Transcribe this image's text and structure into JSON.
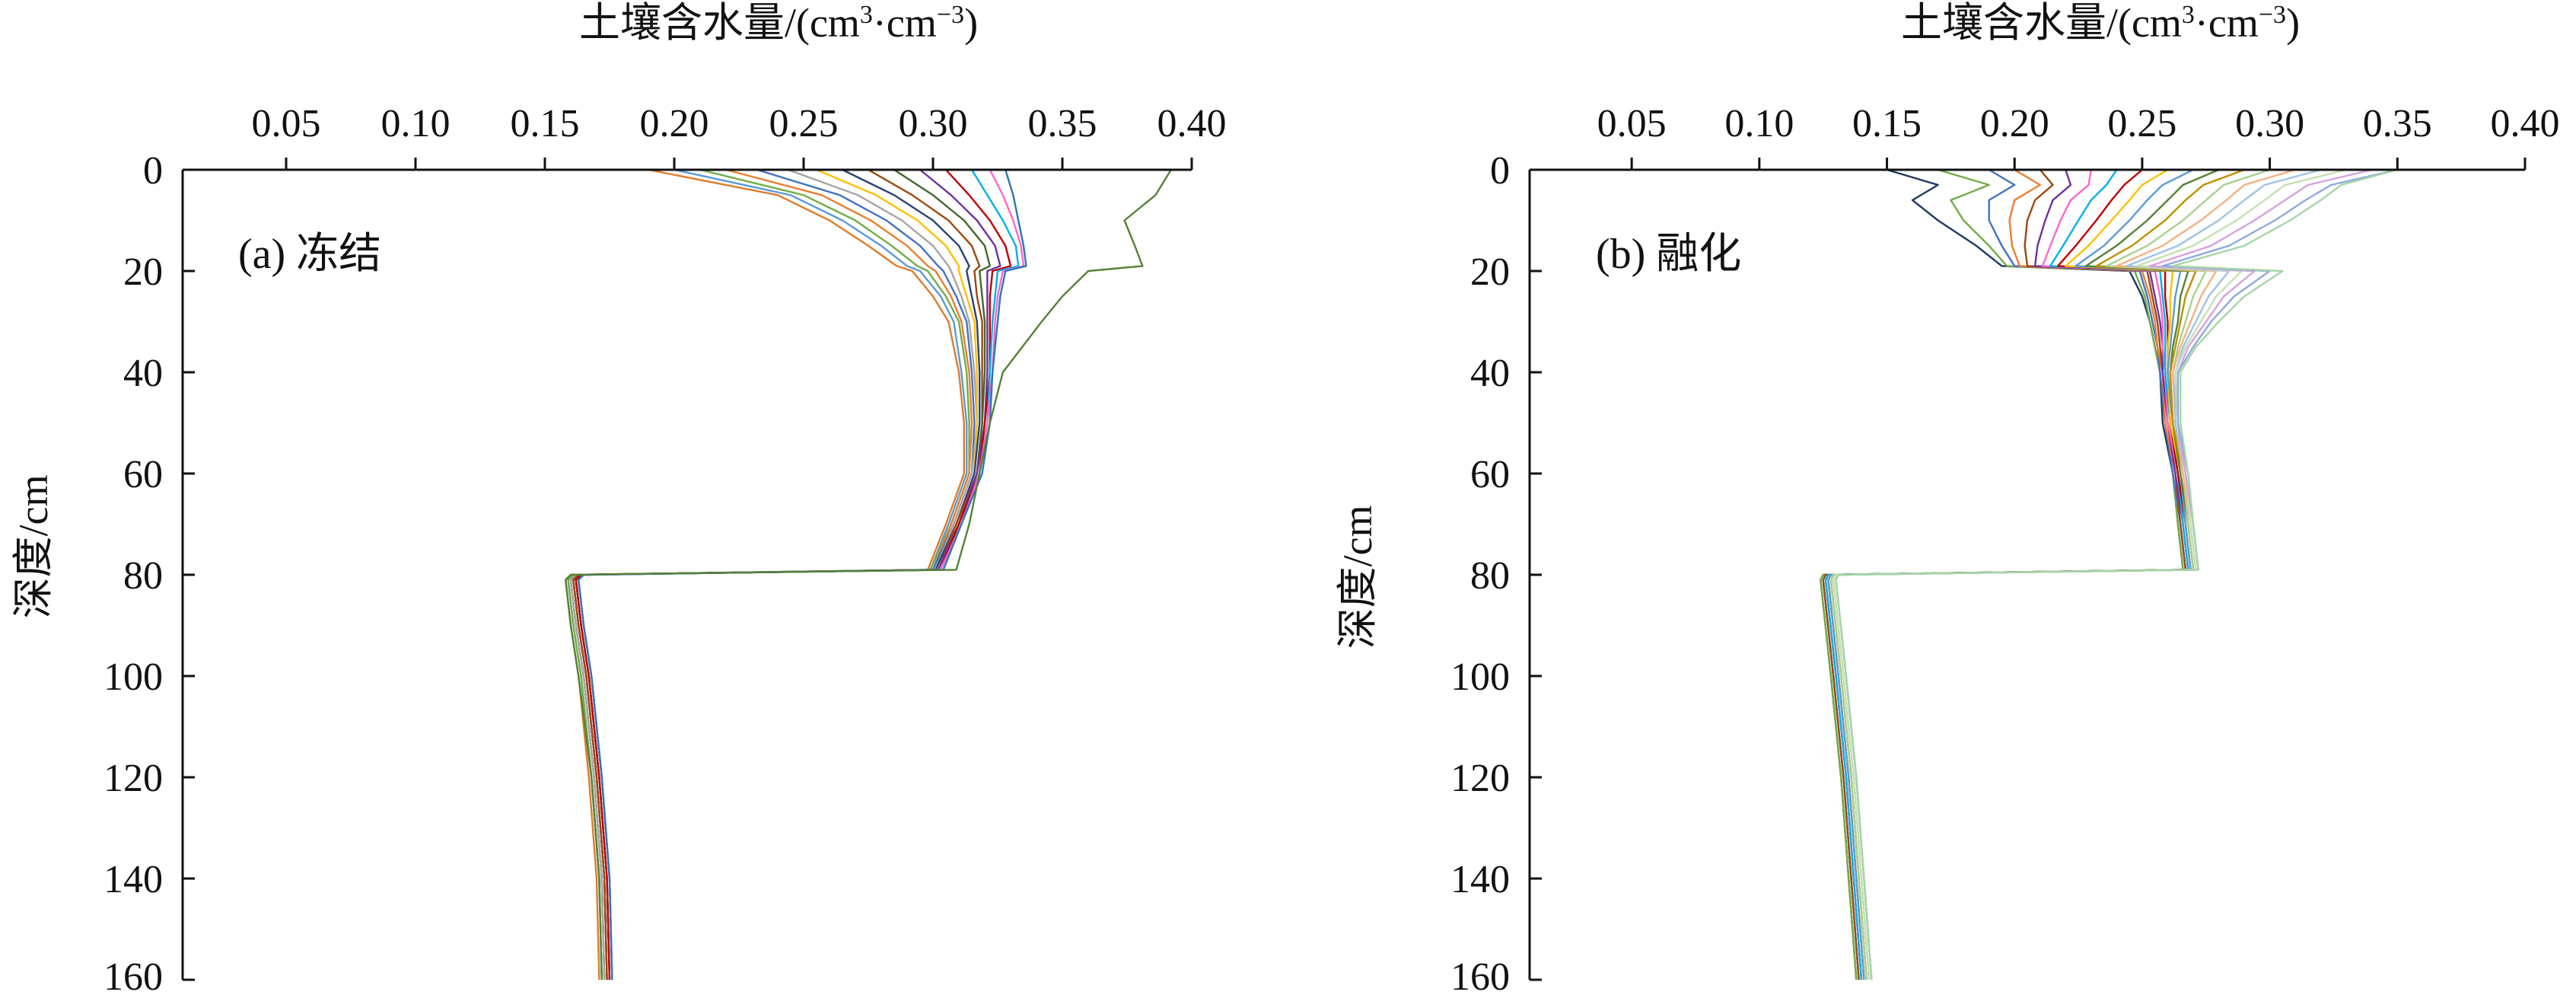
{
  "figure": {
    "panels": [
      {
        "id": "a",
        "panel_label": "(a) 冻结",
        "x_title_main": "土壤含水量/(cm",
        "x_title_sup1": "3",
        "x_title_mid": "·cm",
        "x_title_sup2": "−3",
        "x_title_end": ")",
        "y_title": "深度/cm",
        "x_ticks": [
          "0.05",
          "0.10",
          "0.15",
          "0.20",
          "0.25",
          "0.30",
          "0.35",
          "0.40"
        ],
        "y_ticks": [
          "0",
          "20",
          "40",
          "60",
          "80",
          "100",
          "120",
          "140",
          "160"
        ]
      },
      {
        "id": "b",
        "panel_label": "(b) 融化",
        "x_title_main": "土壤含水量/(cm",
        "x_title_sup1": "3",
        "x_title_mid": "·cm",
        "x_title_sup2": "−3",
        "x_title_end": ")",
        "y_title": "深度/cm",
        "x_ticks": [
          "0.05",
          "0.10",
          "0.15",
          "0.20",
          "0.25",
          "0.30",
          "0.35",
          "0.40"
        ],
        "y_ticks": [
          "0",
          "20",
          "40",
          "60",
          "80",
          "100",
          "120",
          "140",
          "160"
        ]
      }
    ]
  },
  "chart_data": [
    {
      "type": "line",
      "panel": "a",
      "title": "(a) 冻结",
      "xlabel": "土壤含水量/(cm³·cm⁻³)",
      "ylabel": "深度/cm",
      "xlim": [
        0.01,
        0.4
      ],
      "ylim": [
        0,
        160
      ],
      "y_inverted": true,
      "x_axis_position": "top",
      "grid": false,
      "legend": "none",
      "depth": [
        0,
        5,
        10,
        15,
        19,
        20,
        25,
        30,
        40,
        50,
        60,
        70,
        79,
        80,
        81,
        90,
        100,
        120,
        140,
        160
      ],
      "colors": [
        "#e07b2a",
        "#5b9bd5",
        "#70ad47",
        "#ed7d31",
        "#4472c4",
        "#a5a5a5",
        "#ffc000",
        "#264478",
        "#9e480e",
        "#43682b",
        "#7030a0",
        "#c00000",
        "#00b0f0",
        "#ff66cc",
        "#2e75b6",
        "#548235",
        "#bf9000",
        "#7f6000",
        "#1f3864",
        "#333333"
      ],
      "series": [
        {
          "values": [
            0.19,
            0.24,
            0.26,
            0.275,
            0.286,
            0.292,
            0.3,
            0.306,
            0.31,
            0.312,
            0.312,
            0.305,
            0.298,
            0.16,
            0.158,
            0.16,
            0.163,
            0.167,
            0.17,
            0.171
          ]
        },
        {
          "values": [
            0.2,
            0.245,
            0.265,
            0.28,
            0.29,
            0.295,
            0.303,
            0.308,
            0.311,
            0.313,
            0.313,
            0.306,
            0.299,
            0.161,
            0.159,
            0.161,
            0.164,
            0.168,
            0.171,
            0.172
          ]
        },
        {
          "values": [
            0.21,
            0.25,
            0.27,
            0.284,
            0.294,
            0.298,
            0.305,
            0.31,
            0.313,
            0.314,
            0.314,
            0.307,
            0.299,
            0.161,
            0.159,
            0.161,
            0.164,
            0.168,
            0.171,
            0.172
          ]
        },
        {
          "values": [
            0.22,
            0.257,
            0.276,
            0.29,
            0.298,
            0.301,
            0.307,
            0.311,
            0.314,
            0.315,
            0.314,
            0.307,
            0.3,
            0.162,
            0.16,
            0.162,
            0.165,
            0.169,
            0.172,
            0.173
          ]
        },
        {
          "values": [
            0.232,
            0.264,
            0.282,
            0.295,
            0.302,
            0.304,
            0.309,
            0.313,
            0.315,
            0.316,
            0.315,
            0.308,
            0.3,
            0.162,
            0.16,
            0.162,
            0.165,
            0.169,
            0.172,
            0.173
          ]
        },
        {
          "values": [
            0.244,
            0.271,
            0.288,
            0.3,
            0.306,
            0.307,
            0.311,
            0.314,
            0.316,
            0.317,
            0.315,
            0.308,
            0.301,
            0.162,
            0.16,
            0.162,
            0.165,
            0.169,
            0.172,
            0.173
          ]
        },
        {
          "values": [
            0.255,
            0.278,
            0.294,
            0.305,
            0.31,
            0.31,
            0.313,
            0.316,
            0.317,
            0.317,
            0.316,
            0.309,
            0.301,
            0.163,
            0.161,
            0.163,
            0.166,
            0.17,
            0.173,
            0.174
          ]
        },
        {
          "values": [
            0.265,
            0.285,
            0.3,
            0.31,
            0.314,
            0.313,
            0.315,
            0.317,
            0.318,
            0.318,
            0.316,
            0.309,
            0.301,
            0.163,
            0.161,
            0.163,
            0.166,
            0.17,
            0.173,
            0.174
          ]
        },
        {
          "values": [
            0.275,
            0.292,
            0.306,
            0.315,
            0.318,
            0.316,
            0.317,
            0.319,
            0.319,
            0.319,
            0.317,
            0.309,
            0.302,
            0.163,
            0.161,
            0.163,
            0.166,
            0.17,
            0.173,
            0.174
          ]
        },
        {
          "values": [
            0.285,
            0.3,
            0.312,
            0.32,
            0.322,
            0.318,
            0.319,
            0.32,
            0.32,
            0.319,
            0.317,
            0.31,
            0.302,
            0.164,
            0.162,
            0.164,
            0.167,
            0.171,
            0.174,
            0.175
          ]
        },
        {
          "values": [
            0.295,
            0.307,
            0.317,
            0.324,
            0.326,
            0.321,
            0.321,
            0.321,
            0.321,
            0.32,
            0.317,
            0.31,
            0.302,
            0.164,
            0.162,
            0.164,
            0.167,
            0.171,
            0.174,
            0.175
          ]
        },
        {
          "values": [
            0.305,
            0.314,
            0.322,
            0.328,
            0.33,
            0.323,
            0.322,
            0.322,
            0.322,
            0.32,
            0.318,
            0.31,
            0.303,
            0.164,
            0.162,
            0.164,
            0.167,
            0.171,
            0.174,
            0.175
          ]
        },
        {
          "values": [
            0.315,
            0.321,
            0.327,
            0.332,
            0.333,
            0.325,
            0.324,
            0.323,
            0.322,
            0.321,
            0.318,
            0.311,
            0.303,
            0.165,
            0.163,
            0.165,
            0.168,
            0.172,
            0.175,
            0.176
          ]
        },
        {
          "values": [
            0.322,
            0.327,
            0.331,
            0.334,
            0.335,
            0.327,
            0.325,
            0.324,
            0.323,
            0.321,
            0.318,
            0.311,
            0.303,
            0.165,
            0.163,
            0.165,
            0.168,
            0.172,
            0.175,
            0.176
          ]
        },
        {
          "values": [
            0.328,
            0.331,
            0.333,
            0.335,
            0.336,
            0.328,
            0.326,
            0.325,
            0.323,
            0.322,
            0.319,
            0.311,
            0.304,
            0.165,
            0.163,
            0.165,
            0.168,
            0.172,
            0.175,
            0.176
          ]
        },
        {
          "values": [
            0.392,
            0.386,
            0.374,
            0.378,
            0.381,
            0.36,
            0.35,
            0.342,
            0.327,
            0.322,
            0.318,
            0.314,
            0.309,
            0.16,
            0.158,
            0.16,
            0.163,
            0.168,
            0.171,
            0.172
          ]
        }
      ]
    },
    {
      "type": "line",
      "panel": "b",
      "title": "(b) 融化",
      "xlabel": "土壤含水量/(cm³·cm⁻³)",
      "ylabel": "深度/cm",
      "xlim": [
        0.01,
        0.4
      ],
      "ylim": [
        0,
        160
      ],
      "y_inverted": true,
      "x_axis_position": "top",
      "grid": false,
      "legend": "none",
      "depth": [
        0,
        3,
        6,
        10,
        15,
        19,
        20,
        25,
        30,
        35,
        40,
        50,
        60,
        70,
        79,
        80,
        81,
        100,
        120,
        140,
        160
      ],
      "colors": [
        "#1f3864",
        "#70ad47",
        "#4472c4",
        "#ed7d31",
        "#9e480e",
        "#7030a0",
        "#ff66cc",
        "#00b0f0",
        "#c00000",
        "#ffc000",
        "#5b9bd5",
        "#548235",
        "#bf9000",
        "#a9d18e",
        "#f4b183",
        "#9dc3e6",
        "#c5e0b4",
        "#d9a0e0",
        "#8faadc",
        "#a5d6a7"
      ],
      "series": [
        {
          "values": [
            0.15,
            0.17,
            0.16,
            0.17,
            0.185,
            0.195,
            0.245,
            0.25,
            0.253,
            0.255,
            0.257,
            0.258,
            0.262,
            0.264,
            0.266,
            0.125,
            0.124,
            0.128,
            0.132,
            0.135,
            0.138
          ]
        },
        {
          "values": [
            0.17,
            0.19,
            0.175,
            0.18,
            0.19,
            0.197,
            0.247,
            0.251,
            0.253,
            0.255,
            0.257,
            0.259,
            0.262,
            0.264,
            0.266,
            0.125,
            0.124,
            0.128,
            0.132,
            0.135,
            0.138
          ]
        },
        {
          "values": [
            0.19,
            0.2,
            0.19,
            0.19,
            0.195,
            0.2,
            0.249,
            0.252,
            0.254,
            0.256,
            0.257,
            0.259,
            0.262,
            0.265,
            0.267,
            0.126,
            0.125,
            0.129,
            0.133,
            0.136,
            0.139
          ]
        },
        {
          "values": [
            0.2,
            0.21,
            0.2,
            0.198,
            0.199,
            0.202,
            0.25,
            0.253,
            0.255,
            0.256,
            0.258,
            0.259,
            0.263,
            0.265,
            0.267,
            0.126,
            0.125,
            0.129,
            0.133,
            0.136,
            0.139
          ]
        },
        {
          "values": [
            0.21,
            0.215,
            0.208,
            0.205,
            0.204,
            0.205,
            0.252,
            0.254,
            0.256,
            0.257,
            0.258,
            0.26,
            0.263,
            0.265,
            0.267,
            0.126,
            0.125,
            0.129,
            0.133,
            0.136,
            0.139
          ]
        },
        {
          "values": [
            0.22,
            0.222,
            0.215,
            0.212,
            0.209,
            0.208,
            0.253,
            0.255,
            0.257,
            0.258,
            0.258,
            0.26,
            0.263,
            0.266,
            0.268,
            0.127,
            0.126,
            0.13,
            0.134,
            0.137,
            0.14
          ]
        },
        {
          "values": [
            0.23,
            0.229,
            0.222,
            0.218,
            0.214,
            0.211,
            0.255,
            0.257,
            0.258,
            0.258,
            0.259,
            0.26,
            0.264,
            0.266,
            0.268,
            0.127,
            0.126,
            0.13,
            0.134,
            0.137,
            0.14
          ]
        },
        {
          "values": [
            0.24,
            0.236,
            0.23,
            0.225,
            0.219,
            0.214,
            0.257,
            0.258,
            0.259,
            0.259,
            0.259,
            0.261,
            0.264,
            0.266,
            0.268,
            0.127,
            0.126,
            0.13,
            0.134,
            0.137,
            0.14
          ]
        },
        {
          "values": [
            0.25,
            0.243,
            0.238,
            0.232,
            0.224,
            0.217,
            0.259,
            0.259,
            0.26,
            0.26,
            0.26,
            0.261,
            0.264,
            0.267,
            0.269,
            0.128,
            0.127,
            0.131,
            0.135,
            0.138,
            0.141
          ]
        },
        {
          "values": [
            0.26,
            0.25,
            0.245,
            0.238,
            0.229,
            0.22,
            0.262,
            0.261,
            0.261,
            0.26,
            0.26,
            0.261,
            0.265,
            0.267,
            0.269,
            0.128,
            0.127,
            0.131,
            0.135,
            0.138,
            0.141
          ]
        },
        {
          "values": [
            0.27,
            0.258,
            0.252,
            0.245,
            0.235,
            0.224,
            0.265,
            0.263,
            0.262,
            0.261,
            0.26,
            0.262,
            0.265,
            0.267,
            0.269,
            0.128,
            0.127,
            0.131,
            0.135,
            0.138,
            0.141
          ]
        },
        {
          "values": [
            0.28,
            0.266,
            0.26,
            0.252,
            0.24,
            0.228,
            0.268,
            0.265,
            0.264,
            0.262,
            0.261,
            0.262,
            0.265,
            0.268,
            0.27,
            0.129,
            0.128,
            0.132,
            0.136,
            0.139,
            0.142
          ]
        },
        {
          "values": [
            0.29,
            0.274,
            0.267,
            0.259,
            0.246,
            0.232,
            0.271,
            0.267,
            0.265,
            0.263,
            0.261,
            0.262,
            0.266,
            0.268,
            0.27,
            0.129,
            0.128,
            0.132,
            0.136,
            0.139,
            0.142
          ]
        },
        {
          "values": [
            0.3,
            0.282,
            0.275,
            0.266,
            0.252,
            0.236,
            0.275,
            0.27,
            0.267,
            0.264,
            0.262,
            0.263,
            0.266,
            0.268,
            0.27,
            0.129,
            0.128,
            0.132,
            0.136,
            0.139,
            0.142
          ]
        },
        {
          "values": [
            0.31,
            0.29,
            0.283,
            0.273,
            0.258,
            0.24,
            0.279,
            0.273,
            0.269,
            0.265,
            0.262,
            0.263,
            0.266,
            0.269,
            0.271,
            0.13,
            0.129,
            0.133,
            0.137,
            0.14,
            0.143
          ]
        },
        {
          "values": [
            0.32,
            0.298,
            0.29,
            0.28,
            0.264,
            0.244,
            0.284,
            0.276,
            0.271,
            0.266,
            0.263,
            0.263,
            0.267,
            0.269,
            0.271,
            0.13,
            0.129,
            0.133,
            0.137,
            0.14,
            0.143
          ]
        },
        {
          "values": [
            0.33,
            0.306,
            0.298,
            0.287,
            0.27,
            0.248,
            0.289,
            0.279,
            0.273,
            0.267,
            0.263,
            0.264,
            0.267,
            0.269,
            0.271,
            0.13,
            0.129,
            0.133,
            0.137,
            0.14,
            0.143
          ]
        },
        {
          "values": [
            0.34,
            0.315,
            0.306,
            0.294,
            0.277,
            0.253,
            0.294,
            0.282,
            0.275,
            0.268,
            0.264,
            0.264,
            0.267,
            0.27,
            0.272,
            0.131,
            0.13,
            0.134,
            0.138,
            0.141,
            0.144
          ]
        },
        {
          "values": [
            0.35,
            0.324,
            0.314,
            0.302,
            0.284,
            0.258,
            0.3,
            0.286,
            0.277,
            0.27,
            0.264,
            0.264,
            0.268,
            0.27,
            0.272,
            0.131,
            0.13,
            0.134,
            0.138,
            0.141,
            0.144
          ]
        },
        {
          "values": [
            0.35,
            0.328,
            0.32,
            0.308,
            0.29,
            0.262,
            0.305,
            0.29,
            0.28,
            0.271,
            0.265,
            0.265,
            0.268,
            0.27,
            0.272,
            0.131,
            0.13,
            0.134,
            0.138,
            0.141,
            0.144
          ]
        }
      ]
    }
  ]
}
